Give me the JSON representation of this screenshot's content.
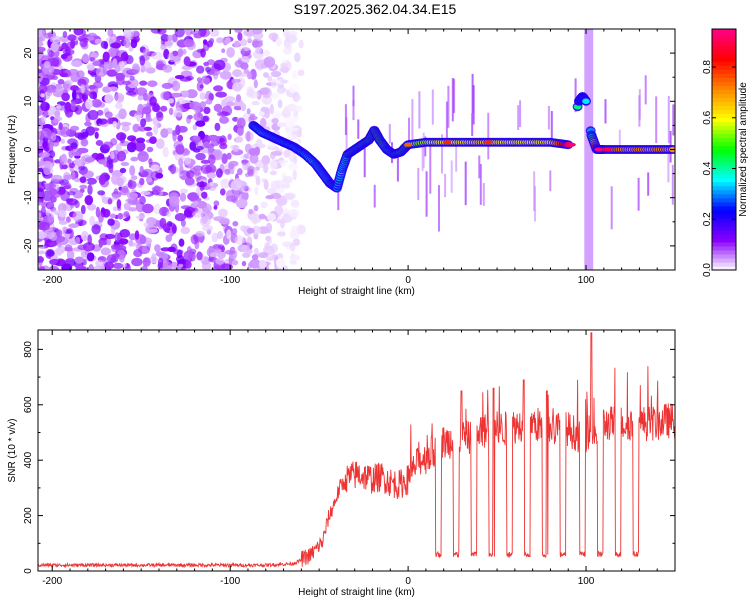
{
  "page": {
    "title": "S197.2025.362.04.34.E15"
  },
  "chart_data": [
    {
      "type": "heatmap",
      "title": "S197.2025.362.04.34.E15",
      "xlabel": "Height of straight line (km)",
      "ylabel": "Frequency (Hz)",
      "xlim": [
        -208,
        150
      ],
      "ylim": [
        -25,
        25
      ],
      "x_ticks": [
        -200,
        -100,
        0,
        100
      ],
      "y_ticks": [
        -20,
        -10,
        0,
        10,
        20
      ],
      "colorbar": {
        "label": "Normalized spectral amplitude",
        "range": [
          0.0,
          0.95
        ],
        "ticks": [
          0.0,
          0.2,
          0.4,
          0.6,
          0.8
        ],
        "tick_labels": [
          "0.0",
          "0.2",
          "0.4",
          "0.6",
          "0.8"
        ],
        "colors": [
          "#ffffff",
          "#8800ff",
          "#0000ff",
          "#00ffff",
          "#00ff00",
          "#ffff00",
          "#ff8800",
          "#ff0000",
          "#ff0088"
        ]
      },
      "ridge": {
        "x": [
          -87,
          -82,
          -76,
          -70,
          -64,
          -58,
          -52,
          -48,
          -44,
          -40,
          -37,
          -34,
          -30,
          -26,
          -22,
          -19,
          -16,
          -12,
          -8,
          -4,
          0,
          10,
          20,
          30,
          40,
          50,
          60,
          70,
          80,
          90,
          96,
          98,
          100,
          103,
          106,
          110,
          120,
          130,
          140,
          150
        ],
        "y": [
          5,
          3.5,
          2.5,
          1.5,
          0.5,
          -1,
          -3,
          -5,
          -7,
          -8,
          -4,
          -1,
          0,
          1,
          2,
          4,
          2,
          0,
          -1,
          -0.5,
          1,
          1.5,
          1.5,
          1.5,
          1.5,
          1.5,
          1.5,
          1.5,
          1.5,
          1,
          10,
          11,
          10,
          3,
          0,
          0,
          0,
          0,
          0,
          0
        ],
        "amplitude": [
          0.3,
          0.35,
          0.3,
          0.3,
          0.3,
          0.3,
          0.35,
          0.35,
          0.35,
          0.3,
          0.35,
          0.4,
          0.45,
          0.4,
          0.45,
          0.5,
          0.5,
          0.4,
          0.4,
          0.45,
          0.5,
          0.55,
          0.6,
          0.6,
          0.65,
          0.6,
          0.6,
          0.6,
          0.6,
          0.9,
          0.35,
          0.3,
          0.35,
          0.3,
          0.9,
          0.8,
          0.7,
          0.7,
          0.7,
          0.7
        ]
      },
      "noise_region_x": [
        -208,
        -60
      ]
    },
    {
      "type": "line",
      "xlabel": "Height of straight line (km)",
      "ylabel": "SNR (10 * v/v)",
      "xlim": [
        -208,
        150
      ],
      "ylim": [
        0,
        870
      ],
      "x_ticks": [
        -200,
        -100,
        0,
        100
      ],
      "y_ticks": [
        0,
        200,
        400,
        600,
        800
      ],
      "color": "#ee3333",
      "x": [
        -208,
        -180,
        -150,
        -120,
        -100,
        -80,
        -65,
        -55,
        -48,
        -45,
        -42,
        -38,
        -35,
        -32,
        -28,
        -24,
        -20,
        -15,
        -10,
        -5,
        0,
        5,
        10,
        15,
        20,
        25,
        30,
        35,
        40,
        45,
        50,
        55,
        60,
        65,
        70,
        75,
        80,
        85,
        90,
        95,
        100,
        103,
        106,
        110,
        115,
        120,
        125,
        130,
        135,
        140,
        145,
        150
      ],
      "y": [
        20,
        20,
        20,
        20,
        20,
        20,
        25,
        50,
        100,
        180,
        230,
        300,
        320,
        330,
        340,
        330,
        320,
        330,
        310,
        300,
        320,
        380,
        400,
        420,
        450,
        460,
        460,
        470,
        480,
        500,
        500,
        500,
        510,
        520,
        520,
        510,
        500,
        500,
        500,
        480,
        480,
        500,
        480,
        520,
        520,
        520,
        520,
        520,
        520,
        520,
        530,
        530
      ],
      "dips": [
        {
          "x": 17,
          "y": 50
        },
        {
          "x": 27,
          "y": 50
        },
        {
          "x": 37,
          "y": 50
        },
        {
          "x": 47,
          "y": 50
        },
        {
          "x": 57,
          "y": 50
        },
        {
          "x": 67,
          "y": 50
        },
        {
          "x": 77,
          "y": 50
        },
        {
          "x": 87,
          "y": 50
        },
        {
          "x": 98,
          "y": 50
        },
        {
          "x": 108,
          "y": 50
        },
        {
          "x": 118,
          "y": 50
        },
        {
          "x": 128,
          "y": 50
        }
      ],
      "peaks": [
        {
          "x": 103,
          "y": 860
        },
        {
          "x": 65,
          "y": 690
        },
        {
          "x": 48,
          "y": 660
        },
        {
          "x": 30,
          "y": 650
        },
        {
          "x": 78,
          "y": 650
        }
      ]
    }
  ]
}
